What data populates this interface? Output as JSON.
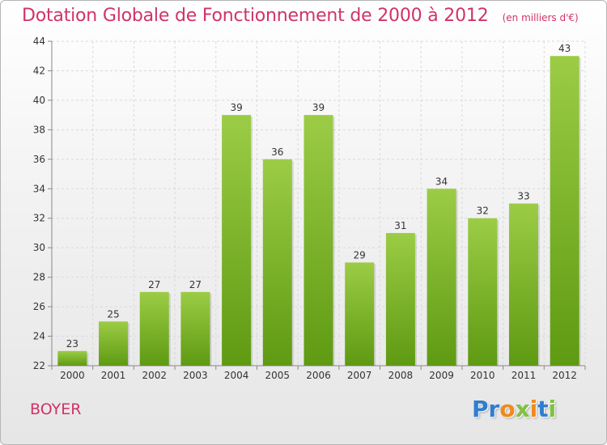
{
  "chart_data": {
    "type": "bar",
    "title": "Dotation Globale de Fonctionnement de 2000 à 2012",
    "subtitle": "(en milliers d'€)",
    "categories": [
      "2000",
      "2001",
      "2002",
      "2003",
      "2004",
      "2005",
      "2006",
      "2007",
      "2008",
      "2009",
      "2010",
      "2011",
      "2012"
    ],
    "values": [
      23,
      25,
      27,
      27,
      39,
      36,
      39,
      29,
      31,
      34,
      32,
      33,
      43
    ],
    "ylim": [
      22,
      44
    ],
    "yticks": [
      22,
      24,
      26,
      28,
      30,
      32,
      34,
      36,
      38,
      40,
      42,
      44
    ],
    "grid": true,
    "bar_color_top": "#9ccc46",
    "bar_color_bottom": "#5e9a12",
    "text_color": "#d0336a"
  },
  "footer": {
    "commune": "BOYER",
    "logo_letters": [
      "P",
      "r",
      "o",
      "x",
      "i",
      "t",
      "i"
    ],
    "logo_colors": [
      "#2f7fd0",
      "#2f7fd0",
      "#f08a1c",
      "#7fc241",
      "#f08a1c",
      "#2f7fd0",
      "#7fc241"
    ]
  }
}
